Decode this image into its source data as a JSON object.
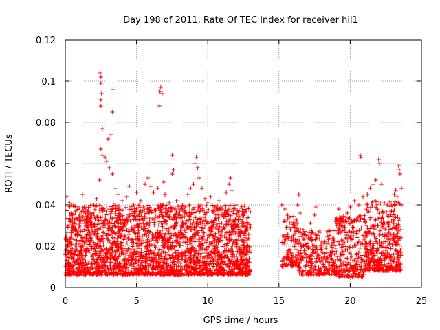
{
  "chart_data": {
    "type": "scatter",
    "title": "Day 198 of 2011, Rate Of TEC Index for receiver hil1",
    "xlabel": "GPS time / hours",
    "ylabel": "ROTI / TECUs",
    "xlim": [
      0,
      25
    ],
    "ylim": [
      0,
      0.12
    ],
    "xticks": [
      "0",
      "5",
      "10",
      "15",
      "20",
      "25"
    ],
    "xtick_values": [
      0,
      5,
      10,
      15,
      20,
      25
    ],
    "yticks": [
      "0",
      "0.02",
      "0.04",
      "0.06",
      "0.08",
      "0.1",
      "0.12"
    ],
    "ytick_values": [
      0,
      0.02,
      0.04,
      0.06,
      0.08,
      0.1,
      0.12
    ],
    "grid": true,
    "marker": "+",
    "color": "#ff0000",
    "series": [
      {
        "name": "ROTI",
        "points": [
          [
            0.1,
            0.044
          ],
          [
            0.3,
            0.041
          ],
          [
            0.5,
            0.035
          ],
          [
            0.7,
            0.028
          ],
          [
            1.0,
            0.031
          ],
          [
            1.2,
            0.045
          ],
          [
            1.4,
            0.038
          ],
          [
            1.6,
            0.03
          ],
          [
            1.8,
            0.036
          ],
          [
            2.0,
            0.04
          ],
          [
            2.2,
            0.043
          ],
          [
            2.4,
            0.052
          ],
          [
            2.45,
            0.104
          ],
          [
            2.5,
            0.102
          ],
          [
            2.5,
            0.099
          ],
          [
            2.55,
            0.094
          ],
          [
            2.5,
            0.091
          ],
          [
            2.5,
            0.088
          ],
          [
            2.6,
            0.077
          ],
          [
            2.5,
            0.067
          ],
          [
            2.6,
            0.064
          ],
          [
            2.8,
            0.063
          ],
          [
            2.9,
            0.061
          ],
          [
            3.0,
            0.072
          ],
          [
            3.2,
            0.074
          ],
          [
            3.3,
            0.085
          ],
          [
            3.35,
            0.096
          ],
          [
            3.1,
            0.058
          ],
          [
            3.3,
            0.055
          ],
          [
            3.5,
            0.048
          ],
          [
            3.7,
            0.045
          ],
          [
            4.0,
            0.042
          ],
          [
            4.3,
            0.044
          ],
          [
            4.5,
            0.049
          ],
          [
            4.8,
            0.04
          ],
          [
            5.0,
            0.046
          ],
          [
            5.3,
            0.042
          ],
          [
            5.6,
            0.05
          ],
          [
            5.8,
            0.053
          ],
          [
            6.0,
            0.049
          ],
          [
            6.2,
            0.046
          ],
          [
            6.5,
            0.048
          ],
          [
            6.6,
            0.088
          ],
          [
            6.65,
            0.095
          ],
          [
            6.7,
            0.097
          ],
          [
            6.8,
            0.094
          ],
          [
            6.9,
            0.051
          ],
          [
            7.0,
            0.045
          ],
          [
            7.3,
            0.041
          ],
          [
            7.5,
            0.064
          ],
          [
            7.6,
            0.057
          ],
          [
            7.5,
            0.055
          ],
          [
            7.8,
            0.042
          ],
          [
            8.0,
            0.038
          ],
          [
            8.2,
            0.034
          ],
          [
            8.4,
            0.039
          ],
          [
            8.6,
            0.045
          ],
          [
            8.8,
            0.048
          ],
          [
            9.0,
            0.05
          ],
          [
            9.1,
            0.06
          ],
          [
            9.2,
            0.063
          ],
          [
            9.3,
            0.058
          ],
          [
            9.4,
            0.053
          ],
          [
            9.6,
            0.048
          ],
          [
            9.8,
            0.043
          ],
          [
            10.0,
            0.041
          ],
          [
            10.2,
            0.044
          ],
          [
            10.5,
            0.039
          ],
          [
            10.8,
            0.042
          ],
          [
            11.0,
            0.038
          ],
          [
            11.3,
            0.046
          ],
          [
            11.5,
            0.05
          ],
          [
            11.6,
            0.053
          ],
          [
            11.7,
            0.047
          ],
          [
            12.0,
            0.04
          ],
          [
            12.2,
            0.037
          ],
          [
            12.5,
            0.034
          ],
          [
            12.8,
            0.031
          ],
          [
            13.0,
            0.029
          ],
          [
            15.2,
            0.04
          ],
          [
            15.4,
            0.038
          ],
          [
            15.6,
            0.033
          ],
          [
            15.8,
            0.028
          ],
          [
            16.0,
            0.025
          ],
          [
            16.2,
            0.03
          ],
          [
            16.3,
            0.04
          ],
          [
            16.4,
            0.045
          ],
          [
            16.5,
            0.036
          ],
          [
            16.7,
            0.028
          ],
          [
            16.9,
            0.025
          ],
          [
            17.2,
            0.031
          ],
          [
            17.5,
            0.035
          ],
          [
            17.6,
            0.039
          ],
          [
            17.8,
            0.027
          ],
          [
            18.0,
            0.022
          ],
          [
            18.3,
            0.019
          ],
          [
            18.6,
            0.017
          ],
          [
            18.8,
            0.021
          ],
          [
            19.0,
            0.033
          ],
          [
            19.2,
            0.038
          ],
          [
            19.4,
            0.034
          ],
          [
            19.6,
            0.03
          ],
          [
            19.8,
            0.036
          ],
          [
            20.0,
            0.039
          ],
          [
            20.3,
            0.042
          ],
          [
            20.6,
            0.04
          ],
          [
            20.7,
            0.064
          ],
          [
            20.75,
            0.063
          ],
          [
            20.9,
            0.044
          ],
          [
            21.2,
            0.045
          ],
          [
            21.4,
            0.048
          ],
          [
            21.6,
            0.05
          ],
          [
            21.8,
            0.052
          ],
          [
            22.0,
            0.062
          ],
          [
            22.05,
            0.06
          ],
          [
            22.2,
            0.05
          ],
          [
            22.4,
            0.041
          ],
          [
            22.6,
            0.04
          ],
          [
            22.9,
            0.037
          ],
          [
            23.1,
            0.045
          ],
          [
            23.2,
            0.047
          ],
          [
            23.3,
            0.044
          ],
          [
            23.4,
            0.059
          ],
          [
            23.45,
            0.057
          ],
          [
            23.5,
            0.055
          ],
          [
            23.6,
            0.048
          ],
          [
            23.6,
            0.04
          ]
        ]
      }
    ]
  }
}
